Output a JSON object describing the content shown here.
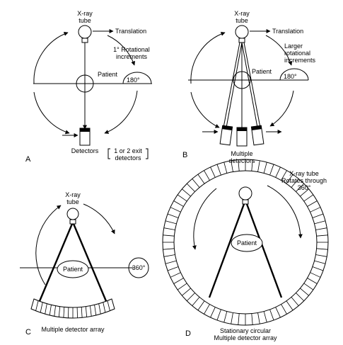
{
  "panels": {
    "a": {
      "letter": "A",
      "tube_line1": "X-ray",
      "tube_line2": "tube",
      "translation": "Translation",
      "increments_line1": "1° Rotational",
      "increments_line2": "increments",
      "patient": "Patient",
      "angle": "180°",
      "detectors": "Detectors",
      "exit_line1": "1 or 2 exit",
      "exit_line2": "detectors"
    },
    "b": {
      "letter": "B",
      "tube_line1": "X-ray",
      "tube_line2": "tube",
      "translation": "Translation",
      "increments_line1": "Larger",
      "increments_line2": "rotational",
      "increments_line3": "increments",
      "patient": "Patient",
      "angle": "180°",
      "detectors_line1": "Multiple",
      "detectors_line2": "detectors"
    },
    "c": {
      "letter": "C",
      "tube_line1": "X-ray",
      "tube_line2": "tube",
      "patient": "Patient",
      "angle": "360°",
      "array": "Multiple detector array"
    },
    "d": {
      "letter": "D",
      "tube_line1": "X-ray tube",
      "tube_line2": "Rotates through",
      "tube_line3": "360°",
      "patient": "Patient",
      "array_line1": "Stationary circular",
      "array_line2": "Multiple detector array"
    }
  }
}
